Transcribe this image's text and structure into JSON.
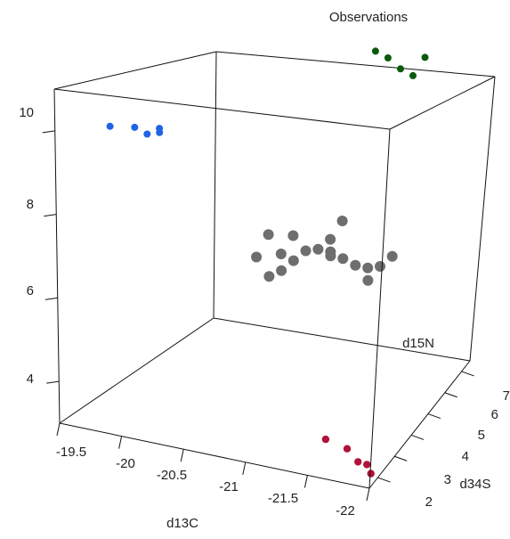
{
  "chart_data": {
    "type": "scatter3d",
    "title": "Observations",
    "axes": {
      "x": {
        "label": "d13C",
        "ticks": [
          "-19.5",
          "-20",
          "-20.5",
          "-21",
          "-21.5",
          "-22"
        ]
      },
      "y": {
        "label": "d34S",
        "ticks": [
          "2",
          "3",
          "4",
          "5",
          "6",
          "7"
        ]
      },
      "z": {
        "label": "d15N",
        "ticks": [
          "4",
          "6",
          "8",
          "10"
        ]
      }
    },
    "colors": {
      "blue": "#1f63e6",
      "green": "#0b5a0b",
      "gray": "#6e6e6e",
      "red": "#b0123a"
    },
    "series": [
      {
        "group": "blue",
        "points": [
          {
            "x": -19.6,
            "y": 4.0,
            "z": 8.9
          },
          {
            "x": -19.8,
            "y": 4.0,
            "z": 9.0
          },
          {
            "x": -19.9,
            "y": 4.0,
            "z": 8.9
          },
          {
            "x": -20.0,
            "y": 4.0,
            "z": 9.1
          },
          {
            "x": -20.0,
            "y": 4.0,
            "z": 9.0
          }
        ]
      },
      {
        "group": "green",
        "points": [
          {
            "x": -21.4,
            "y": 6.6,
            "z": 10.5
          },
          {
            "x": -21.5,
            "y": 6.6,
            "z": 10.4
          },
          {
            "x": -21.6,
            "y": 6.6,
            "z": 10.2
          },
          {
            "x": -21.7,
            "y": 6.6,
            "z": 10.1
          },
          {
            "x": -21.8,
            "y": 6.6,
            "z": 10.6
          }
        ]
      },
      {
        "group": "gray",
        "points": [
          {
            "x": -20.8,
            "y": 4.5,
            "z": 6.8
          },
          {
            "x": -21.0,
            "y": 4.5,
            "z": 6.9
          },
          {
            "x": -21.3,
            "y": 4.5,
            "z": 7.0
          },
          {
            "x": -21.1,
            "y": 4.5,
            "z": 6.6
          },
          {
            "x": -21.2,
            "y": 4.5,
            "z": 6.7
          },
          {
            "x": -21.3,
            "y": 4.5,
            "z": 6.7
          },
          {
            "x": -20.9,
            "y": 4.5,
            "z": 6.4
          },
          {
            "x": -21.0,
            "y": 4.5,
            "z": 6.3
          },
          {
            "x": -20.7,
            "y": 4.5,
            "z": 6.2
          },
          {
            "x": -20.9,
            "y": 4.5,
            "z": 6.0
          },
          {
            "x": -20.8,
            "y": 4.5,
            "z": 5.8
          },
          {
            "x": -21.4,
            "y": 4.5,
            "z": 6.6
          },
          {
            "x": -21.5,
            "y": 4.5,
            "z": 6.5
          },
          {
            "x": -21.6,
            "y": 4.5,
            "z": 6.5
          },
          {
            "x": -21.7,
            "y": 4.5,
            "z": 6.6
          },
          {
            "x": -21.6,
            "y": 4.5,
            "z": 6.2
          },
          {
            "x": -21.8,
            "y": 4.5,
            "z": 6.9
          },
          {
            "x": -21.4,
            "y": 4.5,
            "z": 7.5
          },
          {
            "x": -21.3,
            "y": 4.5,
            "z": 6.6
          }
        ]
      },
      {
        "group": "red",
        "points": [
          {
            "x": -21.5,
            "y": 2.6,
            "z": 3.3
          },
          {
            "x": -21.7,
            "y": 2.4,
            "z": 3.3
          },
          {
            "x": -21.8,
            "y": 2.3,
            "z": 3.1
          },
          {
            "x": -21.9,
            "y": 2.1,
            "z": 3.2
          },
          {
            "x": -22.0,
            "y": 1.6,
            "z": 3.3
          }
        ]
      }
    ]
  }
}
